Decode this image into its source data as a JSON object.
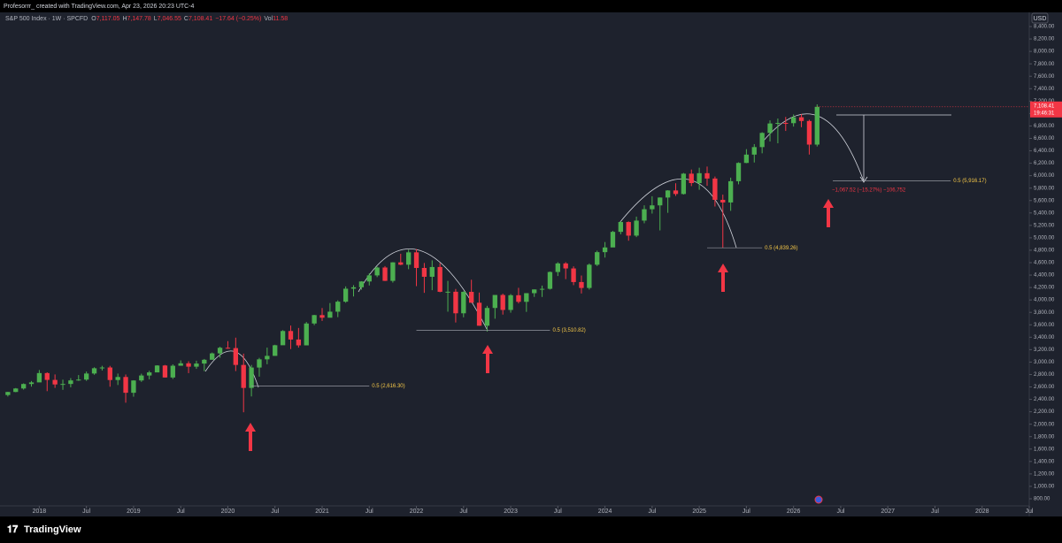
{
  "header": {
    "title": "Profesorrr_ created with TradingView.com, Apr 23, 2026 20:23 UTC-4"
  },
  "footer": {
    "brand": "TradingView"
  },
  "chart_data": {
    "type": "candlestick",
    "title": "S&P 500 Index · 1W · SPCFD",
    "legend": [
      {
        "label": "O",
        "value": "7,117.05"
      },
      {
        "label": "H",
        "value": "7,147.78"
      },
      {
        "label": "L",
        "value": "7,046.55"
      },
      {
        "label": "C",
        "value": "7,108.41"
      }
    ],
    "change": "−17.64 (−0.25%)",
    "volume": {
      "label": "Vol",
      "value": "11.58"
    },
    "currency": "USD",
    "last_price": {
      "value": 7108.41,
      "label": "7,108.41"
    },
    "countdown": "19:46:31",
    "up_color": "#4caf50",
    "down_color": "#f23645",
    "grid": false,
    "x": [
      "2017-09",
      "2017-10",
      "2017-11",
      "2017-12",
      "2018-01",
      "2018-02",
      "2018-03",
      "2018-04",
      "2018-05",
      "2018-06",
      "2018-07",
      "2018-08",
      "2018-09",
      "2018-10",
      "2018-11",
      "2018-12",
      "2019-01",
      "2019-02",
      "2019-03",
      "2019-04",
      "2019-05",
      "2019-06",
      "2019-07",
      "2019-08",
      "2019-09",
      "2019-10",
      "2019-11",
      "2019-12",
      "2020-01",
      "2020-02",
      "2020-03",
      "2020-04",
      "2020-05",
      "2020-06",
      "2020-07",
      "2020-08",
      "2020-09",
      "2020-10",
      "2020-11",
      "2020-12",
      "2021-01",
      "2021-02",
      "2021-03",
      "2021-04",
      "2021-05",
      "2021-06",
      "2021-07",
      "2021-08",
      "2021-09",
      "2021-10",
      "2021-11",
      "2021-12",
      "2022-01",
      "2022-02",
      "2022-03",
      "2022-04",
      "2022-05",
      "2022-06",
      "2022-07",
      "2022-08",
      "2022-09",
      "2022-10",
      "2022-11",
      "2022-12",
      "2023-01",
      "2023-02",
      "2023-03",
      "2023-04",
      "2023-05",
      "2023-06",
      "2023-07",
      "2023-08",
      "2023-09",
      "2023-10",
      "2023-11",
      "2023-12",
      "2024-01",
      "2024-02",
      "2024-03",
      "2024-04",
      "2024-05",
      "2024-06",
      "2024-07",
      "2024-08",
      "2024-09",
      "2024-10",
      "2024-11",
      "2024-12",
      "2025-01",
      "2025-02",
      "2025-03",
      "2025-04",
      "2025-05",
      "2025-06",
      "2025-07",
      "2025-08",
      "2025-09",
      "2025-10",
      "2025-11",
      "2025-12",
      "2026-01",
      "2026-02",
      "2026-03",
      "2026-04"
    ],
    "ohlc": [
      [
        2470,
        2520,
        2446,
        2519
      ],
      [
        2519,
        2582,
        2515,
        2575
      ],
      [
        2575,
        2657,
        2557,
        2647
      ],
      [
        2647,
        2695,
        2605,
        2673
      ],
      [
        2673,
        2872,
        2682,
        2823
      ],
      [
        2823,
        2835,
        2532,
        2713
      ],
      [
        2713,
        2801,
        2585,
        2640
      ],
      [
        2640,
        2717,
        2553,
        2648
      ],
      [
        2648,
        2742,
        2594,
        2705
      ],
      [
        2705,
        2791,
        2698,
        2718
      ],
      [
        2718,
        2848,
        2698,
        2816
      ],
      [
        2816,
        2916,
        2796,
        2901
      ],
      [
        2901,
        2940,
        2864,
        2913
      ],
      [
        2913,
        2939,
        2603,
        2711
      ],
      [
        2711,
        2815,
        2631,
        2760
      ],
      [
        2760,
        2800,
        2346,
        2506
      ],
      [
        2506,
        2708,
        2443,
        2704
      ],
      [
        2704,
        2813,
        2681,
        2784
      ],
      [
        2784,
        2860,
        2722,
        2834
      ],
      [
        2834,
        2949,
        2848,
        2945
      ],
      [
        2945,
        2954,
        2750,
        2752
      ],
      [
        2752,
        2964,
        2728,
        2941
      ],
      [
        2941,
        3027,
        2952,
        2980
      ],
      [
        2980,
        3013,
        2822,
        2926
      ],
      [
        2926,
        3022,
        2891,
        2976
      ],
      [
        2976,
        3050,
        2855,
        3037
      ],
      [
        3037,
        3154,
        3050,
        3140
      ],
      [
        3140,
        3247,
        3070,
        3230
      ],
      [
        3230,
        3337,
        3214,
        3225
      ],
      [
        3225,
        3393,
        2855,
        2954
      ],
      [
        2954,
        3136,
        2192,
        2584
      ],
      [
        2584,
        2954,
        2447,
        2912
      ],
      [
        2912,
        3068,
        2766,
        3044
      ],
      [
        3044,
        3233,
        2965,
        3100
      ],
      [
        3100,
        3279,
        3101,
        3271
      ],
      [
        3271,
        3514,
        3284,
        3500
      ],
      [
        3500,
        3588,
        3209,
        3363
      ],
      [
        3363,
        3549,
        3233,
        3269
      ],
      [
        3269,
        3645,
        3279,
        3621
      ],
      [
        3621,
        3760,
        3594,
        3756
      ],
      [
        3756,
        3870,
        3662,
        3714
      ],
      [
        3714,
        3950,
        3725,
        3811
      ],
      [
        3811,
        3994,
        3723,
        3972
      ],
      [
        3972,
        4218,
        3955,
        4181
      ],
      [
        4181,
        4238,
        4056,
        4204
      ],
      [
        4204,
        4302,
        4164,
        4297
      ],
      [
        4297,
        4429,
        4233,
        4395
      ],
      [
        4395,
        4537,
        4367,
        4522
      ],
      [
        4522,
        4545,
        4305,
        4307
      ],
      [
        4307,
        4608,
        4279,
        4605
      ],
      [
        4605,
        4743,
        4560,
        4567
      ],
      [
        4567,
        4808,
        4495,
        4766
      ],
      [
        4766,
        4818,
        4222,
        4515
      ],
      [
        4515,
        4595,
        4114,
        4373
      ],
      [
        4373,
        4637,
        4157,
        4530
      ],
      [
        4530,
        4593,
        4124,
        4131
      ],
      [
        4131,
        4307,
        3811,
        4132
      ],
      [
        4132,
        4177,
        3637,
        3785
      ],
      [
        3785,
        4140,
        3721,
        4130
      ],
      [
        4130,
        4325,
        3955,
        3955
      ],
      [
        3955,
        4119,
        3584,
        3585
      ],
      [
        3585,
        3905,
        3491,
        3871
      ],
      [
        3871,
        4080,
        3698,
        4080
      ],
      [
        4080,
        4101,
        3764,
        3839
      ],
      [
        3839,
        4095,
        3795,
        4076
      ],
      [
        4076,
        4195,
        3944,
        3970
      ],
      [
        3970,
        4110,
        3808,
        4109
      ],
      [
        4109,
        4170,
        4049,
        4169
      ],
      [
        4169,
        4231,
        4048,
        4179
      ],
      [
        4179,
        4458,
        4167,
        4450
      ],
      [
        4450,
        4607,
        4385,
        4588
      ],
      [
        4588,
        4608,
        4335,
        4507
      ],
      [
        4507,
        4541,
        4238,
        4288
      ],
      [
        4288,
        4393,
        4104,
        4193
      ],
      [
        4193,
        4587,
        4167,
        4567
      ],
      [
        4567,
        4793,
        4546,
        4769
      ],
      [
        4769,
        4932,
        4682,
        4845
      ],
      [
        4845,
        5111,
        4853,
        5096
      ],
      [
        5096,
        5265,
        5057,
        5254
      ],
      [
        5254,
        5264,
        4953,
        5035
      ],
      [
        5035,
        5341,
        5011,
        5277
      ],
      [
        5277,
        5523,
        5234,
        5460
      ],
      [
        5460,
        5669,
        5390,
        5522
      ],
      [
        5522,
        5651,
        5119,
        5648
      ],
      [
        5648,
        5767,
        5402,
        5762
      ],
      [
        5762,
        5878,
        5674,
        5705
      ],
      [
        5705,
        6044,
        5696,
        6032
      ],
      [
        6032,
        6099,
        5832,
        5881
      ],
      [
        5881,
        6128,
        5773,
        6040
      ],
      [
        6040,
        6147,
        5837,
        5954
      ],
      [
        5954,
        5986,
        5504,
        5611
      ],
      [
        5611,
        5695,
        4835,
        5569
      ],
      [
        5569,
        5968,
        5434,
        5911
      ],
      [
        5911,
        6215,
        5861,
        6205
      ],
      [
        6205,
        6427,
        6201,
        6339
      ],
      [
        6339,
        6508,
        6212,
        6460
      ],
      [
        6460,
        6699,
        6360,
        6688
      ],
      [
        6688,
        6890,
        6550,
        6840
      ],
      [
        6840,
        6920,
        6521,
        6849
      ],
      [
        6849,
        6945,
        6720,
        6845
      ],
      [
        6845,
        6985,
        6790,
        6940
      ],
      [
        6940,
        6990,
        6780,
        6880
      ],
      [
        6880,
        6900,
        6340,
        6500
      ],
      [
        6500,
        7148,
        6470,
        7108
      ]
    ],
    "xlim": [
      "2017-08",
      "2028-07"
    ],
    "xticks": [
      {
        "value": "2018-01",
        "label": "2018"
      },
      {
        "value": "2018-07",
        "label": "Jul"
      },
      {
        "value": "2019-01",
        "label": "2019"
      },
      {
        "value": "2019-07",
        "label": "Jul"
      },
      {
        "value": "2020-01",
        "label": "2020"
      },
      {
        "value": "2020-07",
        "label": "Jul"
      },
      {
        "value": "2021-01",
        "label": "2021"
      },
      {
        "value": "2021-07",
        "label": "Jul"
      },
      {
        "value": "2022-01",
        "label": "2022"
      },
      {
        "value": "2022-07",
        "label": "Jul"
      },
      {
        "value": "2023-01",
        "label": "2023"
      },
      {
        "value": "2023-07",
        "label": "Jul"
      },
      {
        "value": "2024-01",
        "label": "2024"
      },
      {
        "value": "2024-07",
        "label": "Jul"
      },
      {
        "value": "2025-01",
        "label": "2025"
      },
      {
        "value": "2025-07",
        "label": "Jul"
      },
      {
        "value": "2026-01",
        "label": "2026"
      },
      {
        "value": "2026-07",
        "label": "Jul"
      },
      {
        "value": "2027-01",
        "label": "2027"
      },
      {
        "value": "2027-07",
        "label": "Jul"
      },
      {
        "value": "2028-01",
        "label": "2028"
      },
      {
        "value": "2028-07",
        "label": "Jul"
      }
    ],
    "ylim": [
      686,
      8628
    ],
    "yticks": [
      {
        "value": 800,
        "label": "800.00"
      },
      {
        "value": 1000,
        "label": "1,000.00"
      },
      {
        "value": 1200,
        "label": "1,200.00"
      },
      {
        "value": 1400,
        "label": "1,400.00"
      },
      {
        "value": 1600,
        "label": "1,600.00"
      },
      {
        "value": 1800,
        "label": "1,800.00"
      },
      {
        "value": 2000,
        "label": "2,000.00"
      },
      {
        "value": 2200,
        "label": "2,200.00"
      },
      {
        "value": 2400,
        "label": "2,400.00"
      },
      {
        "value": 2600,
        "label": "2,600.00"
      },
      {
        "value": 2800,
        "label": "2,800.00"
      },
      {
        "value": 3000,
        "label": "3,000.00"
      },
      {
        "value": 3200,
        "label": "3,200.00"
      },
      {
        "value": 3400,
        "label": "3,400.00"
      },
      {
        "value": 3600,
        "label": "3,600.00"
      },
      {
        "value": 3800,
        "label": "3,800.00"
      },
      {
        "value": 4000,
        "label": "4,000.00"
      },
      {
        "value": 4200,
        "label": "4,200.00"
      },
      {
        "value": 4400,
        "label": "4,400.00"
      },
      {
        "value": 4600,
        "label": "4,600.00"
      },
      {
        "value": 4800,
        "label": "4,800.00"
      },
      {
        "value": 5000,
        "label": "5,000.00"
      },
      {
        "value": 5200,
        "label": "5,200.00"
      },
      {
        "value": 5400,
        "label": "5,400.00"
      },
      {
        "value": 5600,
        "label": "5,600.00"
      },
      {
        "value": 5800,
        "label": "5,800.00"
      },
      {
        "value": 6000,
        "label": "6,000.00"
      },
      {
        "value": 6200,
        "label": "6,200.00"
      },
      {
        "value": 6400,
        "label": "6,400.00"
      },
      {
        "value": 6600,
        "label": "6,600.00"
      },
      {
        "value": 6800,
        "label": "6,800.00"
      },
      {
        "value": 7000,
        "label": "7,000.00"
      },
      {
        "value": 7200,
        "label": "7,200.00"
      },
      {
        "value": 7400,
        "label": "7,400.00"
      },
      {
        "value": 7600,
        "label": "7,600.00"
      },
      {
        "value": 7800,
        "label": "7,800.00"
      },
      {
        "value": 8000,
        "label": "8,000.00"
      },
      {
        "value": 8200,
        "label": "8,200.00"
      },
      {
        "value": 8400,
        "label": "8,400.00"
      }
    ],
    "levels": [
      {
        "label": "0.5 (2,616.30)",
        "value": 2616.3,
        "from": "2020-04",
        "to": "2021-07"
      },
      {
        "label": "0.5 (3,510.82)",
        "value": 3510.82,
        "from": "2022-01",
        "to": "2023-06"
      },
      {
        "label": "0.5 (4,839.26)",
        "value": 4839.26,
        "from": "2025-02",
        "to": "2025-09"
      },
      {
        "label": "0.5 (5,916.17)",
        "value": 5916.17,
        "from": "2026-06",
        "to": "2027-09"
      }
    ],
    "measure": "−1,067.52 (−15.27%) −106,752"
  }
}
